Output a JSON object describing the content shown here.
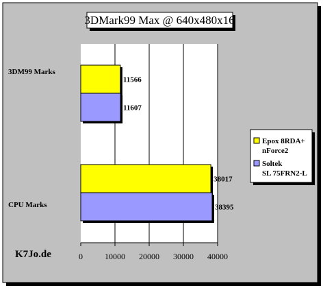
{
  "chart_data": {
    "type": "bar",
    "orientation": "horizontal",
    "title": "3DMark99 Max @ 640x480x16",
    "categories": [
      "3DM99 Marks",
      "CPU Marks"
    ],
    "series": [
      {
        "name": "Epox 8RDA+ nForce2",
        "name_lines": [
          "Epox 8RDA+",
          "nForce2"
        ],
        "color": "#ffff00",
        "values": [
          11566,
          38017
        ]
      },
      {
        "name": "Soltek SL 75FRN2-L",
        "name_lines": [
          "Soltek",
          "SL 75FRN2-L"
        ],
        "color": "#9999ff",
        "values": [
          11607,
          38395
        ]
      }
    ],
    "xlim": [
      0,
      40000
    ],
    "xticks": [
      0,
      10000,
      20000,
      30000,
      40000
    ],
    "xlabel": "",
    "ylabel": "",
    "grid": true,
    "legend": "right",
    "watermark": "K7Jo.de",
    "background": "#c0c0c0",
    "plot_background": "#ffffff"
  }
}
